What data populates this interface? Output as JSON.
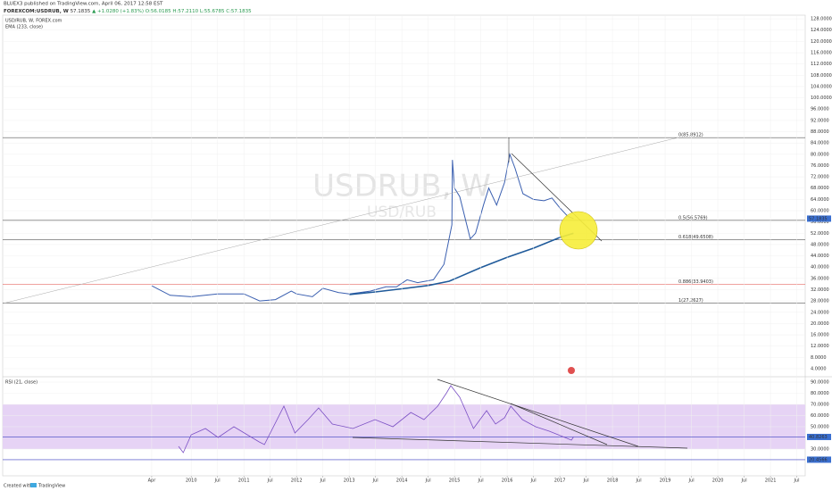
{
  "header": {
    "published": "BLUEX3 published on TradingView.com, April 06, 2017 12:58 EST",
    "symbol": "FOREXCOM:USDRUB, W",
    "price": "57.1835",
    "change": "▲ +1.0280 (+1.83%)",
    "ohlc": "O:56.0185 H:57.2110 L:55.6785 C:57.1835"
  },
  "footer": {
    "created": "Created with",
    "brand": "TradingView"
  },
  "chart_data": [
    {
      "type": "line",
      "title": "USD/RUB, W, FOREX.com",
      "watermark": "USDRUB, W",
      "watermark_sub": "USD/RUB",
      "xlim": [
        2006.42,
        2021.66
      ],
      "ylim": [
        1.78,
        129.3
      ],
      "grid": true,
      "yticks": [
        {
          "value": 4,
          "label": "4.0000"
        },
        {
          "value": 8,
          "label": "8.0000"
        },
        {
          "value": 12,
          "label": "12.0000"
        },
        {
          "value": 16,
          "label": "16.0000"
        },
        {
          "value": 20,
          "label": "20.0000"
        },
        {
          "value": 24,
          "label": "24.0000"
        },
        {
          "value": 28,
          "label": "28.0000"
        },
        {
          "value": 32,
          "label": "32.0000"
        },
        {
          "value": 36,
          "label": "36.0000"
        },
        {
          "value": 40,
          "label": "40.0000"
        },
        {
          "value": 44,
          "label": "44.0000"
        },
        {
          "value": 48,
          "label": "48.0000"
        },
        {
          "value": 52,
          "label": "52.0000"
        },
        {
          "value": 56,
          "label": "56.0000"
        },
        {
          "value": 60,
          "label": "60.0000"
        },
        {
          "value": 64,
          "label": "64.0000"
        },
        {
          "value": 68,
          "label": "68.0000"
        },
        {
          "value": 72,
          "label": "72.0000"
        },
        {
          "value": 76,
          "label": "76.0000"
        },
        {
          "value": 80,
          "label": "80.0000"
        },
        {
          "value": 84,
          "label": "84.0000"
        },
        {
          "value": 88,
          "label": "88.0000"
        },
        {
          "value": 92,
          "label": "92.0000"
        },
        {
          "value": 96,
          "label": "96.0000"
        },
        {
          "value": 100,
          "label": "100.0000"
        },
        {
          "value": 104,
          "label": "104.0000"
        },
        {
          "value": 108,
          "label": "108.0000"
        },
        {
          "value": 112,
          "label": "112.0000"
        },
        {
          "value": 116,
          "label": "116.0000"
        },
        {
          "value": 120,
          "label": "120.0000"
        },
        {
          "value": 124,
          "label": "124.0000"
        },
        {
          "value": 128,
          "label": "128.0000"
        }
      ],
      "series": [
        {
          "color": "#3a5fb0",
          "width": 1,
          "x": [
            2009.25,
            2009.6,
            2010.0,
            2010.5,
            2011.0,
            2011.3,
            2011.6,
            2011.9,
            2012.0,
            2012.3,
            2012.5,
            2012.8,
            2013.0,
            2013.4,
            2013.7,
            2013.9,
            2014.1,
            2014.3,
            2014.6,
            2014.8,
            2014.95,
            2014.96,
            2015.0,
            2015.1,
            2015.3,
            2015.4,
            2015.55,
            2015.65,
            2015.8,
            2015.95,
            2016.05,
            2016.15,
            2016.3,
            2016.5,
            2016.7,
            2016.85,
            2017.0,
            2017.15,
            2017.26
          ],
          "values": [
            33.4,
            30,
            29.5,
            30.5,
            30.5,
            28,
            28.5,
            31.5,
            30.5,
            29.5,
            32.5,
            31,
            30.5,
            31.5,
            33,
            33,
            35.5,
            34.5,
            35.5,
            41,
            55,
            78,
            68,
            65,
            50,
            52,
            62,
            68,
            62,
            70,
            80,
            75,
            66,
            64,
            63.5,
            64.5,
            61,
            58,
            57.18
          ]
        },
        {
          "name": "EMA (233, close)",
          "color": "#1f5a9a",
          "width": 1.6,
          "x": [
            2013.0,
            2013.5,
            2014.0,
            2014.5,
            2014.9,
            2015.5,
            2016.0,
            2016.5,
            2017.0,
            2017.26
          ],
          "values": [
            30.3,
            31.2,
            32.3,
            33.5,
            35,
            39.8,
            43.5,
            46.7,
            50.5,
            52
          ]
        }
      ],
      "levels": [
        {
          "value": 85.8912,
          "label": "0(85.8912)",
          "color": "#555555"
        },
        {
          "value": 56.5769,
          "label": "0.5(56.5769)",
          "color": "#555555"
        },
        {
          "value": 49.6508,
          "label": "0.618(49.6508)",
          "color": "#555555"
        },
        {
          "value": 33.9403,
          "label": "0.886(33.9403)",
          "color": "#e0443c"
        },
        {
          "value": 27.2627,
          "label": "1(27.2627)",
          "color": "#555555"
        }
      ],
      "price_tags": [
        {
          "value": 57.1835,
          "label": "57.1835",
          "color": "#3a6fd0"
        }
      ]
    },
    {
      "type": "line",
      "title": "RSI (21, close)",
      "xlim": [
        2006.42,
        2021.66
      ],
      "ylim": [
        6,
        93.2
      ],
      "grid": true,
      "band": [
        30,
        70
      ],
      "band_color": "#e6d3f5",
      "yticks": [
        {
          "value": 90,
          "label": "90.0000"
        },
        {
          "value": 80,
          "label": "80.0000"
        },
        {
          "value": 70,
          "label": "70.0000"
        },
        {
          "value": 60,
          "label": "60.0000"
        },
        {
          "value": 50,
          "label": "50.0000"
        },
        {
          "value": 30,
          "label": "30.0000"
        }
      ],
      "xticks": [
        {
          "value": 2009.25,
          "label": "Apr"
        },
        2010,
        {
          "value": 2010.5,
          "label": "Jul"
        },
        2011,
        {
          "value": 2011.5,
          "label": "Jul"
        },
        2012,
        {
          "value": 2012.5,
          "label": "Jul"
        },
        2013,
        {
          "value": 2013.5,
          "label": "Jul"
        },
        2014,
        {
          "value": 2014.5,
          "label": "Jul"
        },
        2015,
        {
          "value": 2015.5,
          "label": "Jul"
        },
        2016,
        {
          "value": 2016.5,
          "label": "Jul"
        },
        2017,
        {
          "value": 2017.5,
          "label": "Jul"
        },
        2018,
        {
          "value": 2018.5,
          "label": "Jul"
        },
        2019,
        {
          "value": 2019.5,
          "label": "Jul"
        },
        2020,
        {
          "value": 2020.5,
          "label": "Jul"
        },
        2021,
        {
          "value": 2021.5,
          "label": "Jul"
        }
      ],
      "series": [
        {
          "color": "#7a4fc4",
          "width": 0.8,
          "x": [
            2009.76,
            2009.85,
            2010.0,
            2010.27,
            2010.51,
            2010.81,
            2011.29,
            2011.39,
            2011.76,
            2011.97,
            2012.22,
            2012.42,
            2012.68,
            2013.07,
            2013.49,
            2013.83,
            2014.17,
            2014.42,
            2014.68,
            2014.85,
            2014.93,
            2015.1,
            2015.36,
            2015.61,
            2015.78,
            2015.95,
            2016.07,
            2016.29,
            2016.54,
            2016.8,
            2016.97,
            2017.22,
            2017.26
          ],
          "values": [
            32.4,
            26.8,
            42.8,
            48.4,
            40.4,
            50,
            36.4,
            34,
            68.4,
            44.4,
            56.4,
            66.8,
            52.4,
            48.4,
            56.4,
            50,
            62.8,
            56.4,
            68.4,
            80.4,
            86.8,
            76.4,
            48.4,
            64.4,
            52.4,
            58,
            68.4,
            56.4,
            50,
            46,
            42.8,
            38,
            40.8
          ]
        }
      ],
      "levels": [
        {
          "value": 40.8263,
          "label": "40.8263",
          "color": "#3a3fc0"
        },
        {
          "value": 20.4566,
          "label": "20.4566",
          "color": "#3a3fc0"
        }
      ],
      "price_tags": [
        {
          "value": 40.8263,
          "label": "40.8263",
          "color": "#3a6fd0"
        },
        {
          "value": 20.4566,
          "label": "20.4566",
          "color": "#3a6fd0"
        }
      ]
    }
  ]
}
